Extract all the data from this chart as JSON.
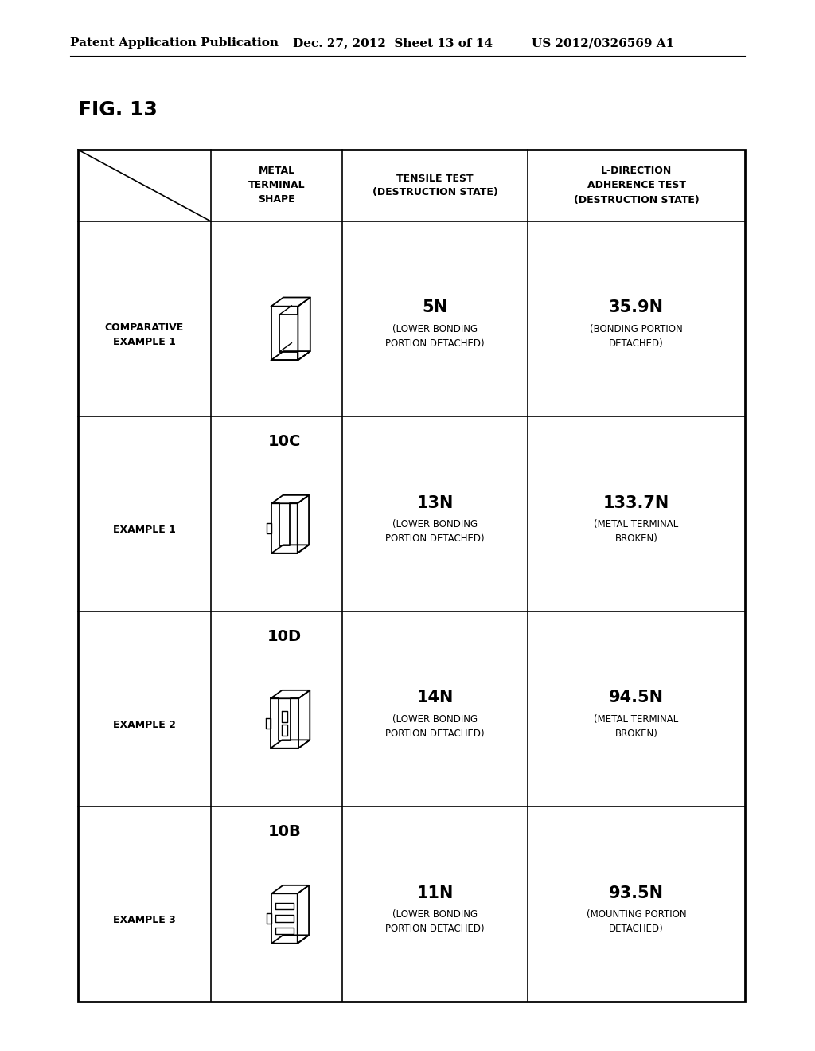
{
  "bg_color": "#ffffff",
  "header_left": "Patent Application Publication",
  "header_mid": "Dec. 27, 2012  Sheet 13 of 14",
  "header_right": "US 2012/0326569 A1",
  "fig_label": "FIG. 13",
  "col_headers": [
    "METAL\nTERMINAL\nSHAPE",
    "TENSILE TEST\n(DESTRUCTION STATE)",
    "L-DIRECTION\nADHERENCE TEST\n(DESTRUCTION STATE)"
  ],
  "row_labels": [
    "COMPARATIVE\nEXAMPLE 1",
    "EXAMPLE 1",
    "EXAMPLE 2",
    "EXAMPLE 3"
  ],
  "component_labels": [
    "",
    "10C",
    "10D",
    "10B"
  ],
  "tensile_values": [
    "5N",
    "13N",
    "14N",
    "11N"
  ],
  "tensile_sub": [
    "(LOWER BONDING\nPORTION DETACHED)",
    "(LOWER BONDING\nPORTION DETACHED)",
    "(LOWER BONDING\nPORTION DETACHED)",
    "(LOWER BONDING\nPORTION DETACHED)"
  ],
  "adherence_values": [
    "35.9N",
    "133.7N",
    "94.5N",
    "93.5N"
  ],
  "adherence_sub": [
    "(BONDING PORTION\nDETACHED)",
    "(METAL TERMINAL\nBROKEN)",
    "(METAL TERMINAL\nBROKEN)",
    "(MOUNTING PORTION\nDETACHED)"
  ]
}
